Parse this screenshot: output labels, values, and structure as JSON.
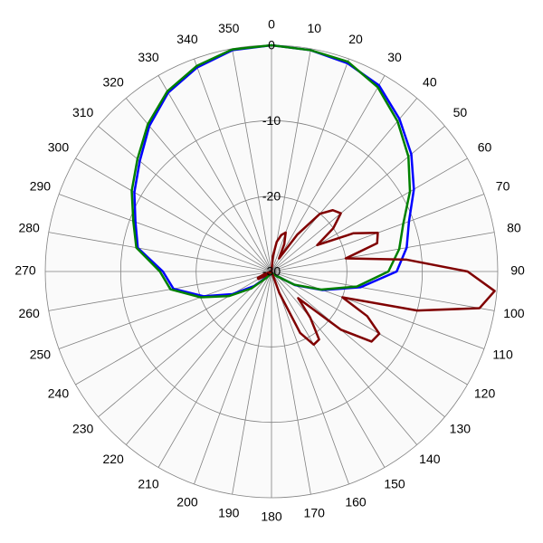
{
  "chart_data": {
    "type": "polar",
    "thetaticks": [
      0,
      10,
      20,
      30,
      40,
      50,
      60,
      70,
      80,
      90,
      100,
      110,
      120,
      130,
      140,
      150,
      160,
      170,
      180,
      190,
      200,
      210,
      220,
      230,
      240,
      250,
      260,
      270,
      280,
      290,
      300,
      310,
      320,
      330,
      340,
      350
    ],
    "rlim": [
      -30,
      0
    ],
    "rticks": [
      0,
      -10,
      -20,
      -30
    ],
    "grid": true,
    "series": [
      {
        "color": "#0000ff",
        "theta": [
          0,
          10,
          20,
          30,
          40,
          50,
          60,
          70,
          80,
          90,
          100,
          110,
          120,
          130,
          140,
          150,
          160,
          170,
          180,
          190,
          200,
          210,
          220,
          230,
          240,
          250,
          260,
          270,
          280,
          290,
          300,
          310,
          320,
          330,
          340,
          350
        ],
        "values": [
          0,
          -0.2,
          -0.6,
          -1.5,
          -3.6,
          -5.8,
          -8.2,
          -10.6,
          -11.8,
          -13.4,
          -18,
          -22.8,
          -26.4,
          -29,
          -29.5,
          -29.7,
          -29.8,
          -29.8,
          -29.8,
          -29.8,
          -29.7,
          -29.5,
          -29,
          -27,
          -24,
          -20.4,
          -16.8,
          -15.6,
          -12,
          -10.8,
          -9,
          -7.2,
          -4.8,
          -2.6,
          -1.2,
          -0.2
        ]
      },
      {
        "color": "#008000",
        "theta": [
          0,
          10,
          20,
          30,
          40,
          50,
          60,
          70,
          80,
          90,
          100,
          110,
          120,
          130,
          140,
          150,
          160,
          170,
          180,
          190,
          200,
          210,
          220,
          230,
          240,
          250,
          260,
          270,
          280,
          290,
          300,
          310,
          320,
          330,
          340,
          350
        ],
        "values": [
          0,
          -0.2,
          -0.4,
          -1.8,
          -4,
          -6.3,
          -8.8,
          -11.4,
          -12.8,
          -14.5,
          -18.5,
          -23,
          -26.5,
          -29,
          -29.5,
          -29.7,
          -29.8,
          -29.8,
          -29.8,
          -29.8,
          -29.7,
          -29.5,
          -28.8,
          -26.5,
          -23.5,
          -20,
          -16.4,
          -15.2,
          -11.8,
          -10.5,
          -8.6,
          -6.8,
          -4.5,
          -2.4,
          -1,
          -0.1
        ]
      },
      {
        "color": "#800000",
        "theta": [
          0,
          5,
          10,
          15,
          20,
          25,
          30,
          35,
          40,
          45,
          50,
          55,
          60,
          65,
          70,
          75,
          80,
          85,
          90,
          95,
          100,
          105,
          110,
          115,
          120,
          125,
          130,
          135,
          140,
          145,
          150,
          155,
          160,
          165,
          170,
          175,
          180,
          185,
          190,
          195,
          200,
          205,
          210,
          215,
          220,
          225,
          230,
          235,
          240,
          245,
          250,
          255,
          260,
          265,
          270,
          275,
          280,
          285,
          290,
          295,
          300,
          305,
          310,
          315,
          320,
          325,
          330,
          335,
          340,
          345,
          350,
          355
        ],
        "values": [
          -30,
          -28,
          -26,
          -25,
          -24.5,
          -26,
          -28,
          -24,
          -20,
          -18.5,
          -18,
          -20,
          -23,
          -18,
          -15,
          -15.5,
          -20,
          -12,
          -4,
          -0.3,
          -2,
          -10,
          -20,
          -16,
          -13.5,
          -13.8,
          -18,
          -25,
          -22,
          -19,
          -18.8,
          -21,
          -27,
          -30,
          -30,
          -30,
          -30,
          -30,
          -30,
          -30,
          -30,
          -30,
          -30,
          -30,
          -30,
          -30,
          -30,
          -29,
          -28,
          -28,
          -29,
          -30,
          -30,
          -30,
          -30,
          -30,
          -30,
          -30,
          -30,
          -30,
          -30,
          -30,
          -30,
          -30,
          -30,
          -30,
          -30,
          -30,
          -30,
          -30,
          -30,
          -30
        ]
      }
    ]
  }
}
